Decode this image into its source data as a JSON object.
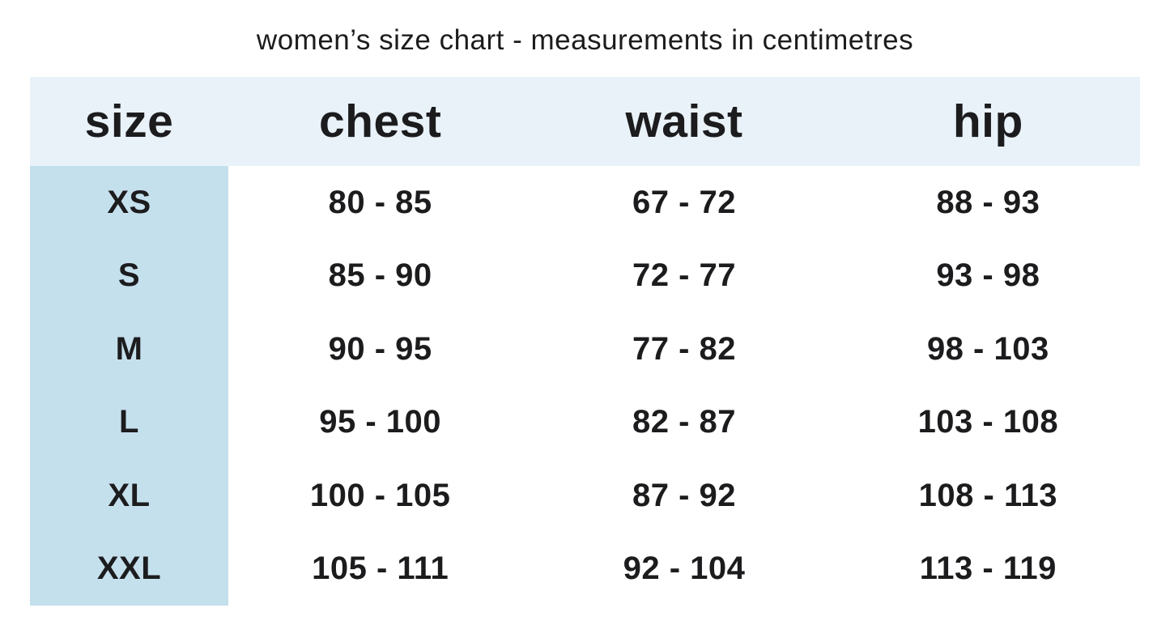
{
  "title": "women’s size chart - measurements in centimetres",
  "colors": {
    "header_bg": "#e9f2f8",
    "size_col_bg": "#c5e0ed",
    "text_color": "#1c1c1e",
    "page_bg": "#ffffff"
  },
  "chart_data": {
    "type": "table",
    "title": "women’s size chart - measurements in centimetres",
    "columns": [
      "size",
      "chest",
      "waist",
      "hip"
    ],
    "rows": [
      [
        "XS",
        "80 - 85",
        "67 - 72",
        "88 - 93"
      ],
      [
        "S",
        "85 - 90",
        "72 - 77",
        "93 - 98"
      ],
      [
        "M",
        "90 - 95",
        "77 - 82",
        "98 - 103"
      ],
      [
        "L",
        "95 - 100",
        "82 - 87",
        "103 - 108"
      ],
      [
        "XL",
        "100 - 105",
        "87 - 92",
        "108 - 113"
      ],
      [
        "XXL",
        "105 - 111",
        "92 - 104",
        "113 - 119"
      ]
    ],
    "units": "centimetres"
  }
}
